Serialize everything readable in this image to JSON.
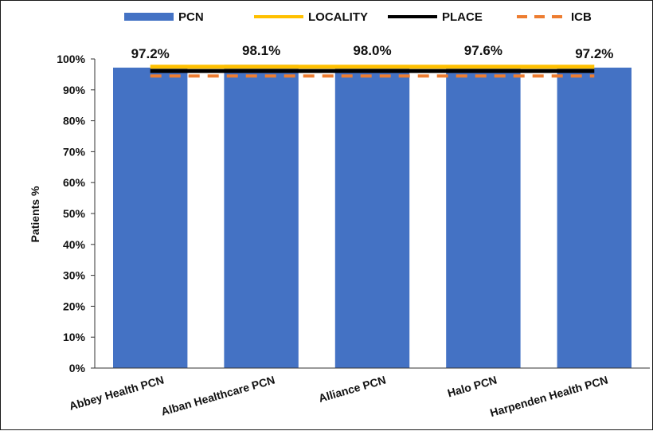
{
  "chart_data": {
    "type": "bar",
    "categories": [
      "Abbey Health PCN",
      "Alban Healthcare PCN",
      "Alliance PCN",
      "Halo PCN",
      "Harpenden Health PCN"
    ],
    "series": [
      {
        "name": "PCN",
        "values": [
          97.2,
          98.1,
          98.0,
          97.6,
          97.2
        ],
        "color": "#4472c4",
        "kind": "bar"
      }
    ],
    "reference_lines": [
      {
        "name": "LOCALITY",
        "value": 97.5,
        "color": "#ffc000",
        "style": "solid"
      },
      {
        "name": "PLACE",
        "value": 96.1,
        "color": "#000000",
        "style": "solid"
      },
      {
        "name": "ICB",
        "value": 94.5,
        "color": "#ed7d31",
        "style": "dashed"
      }
    ],
    "data_labels": [
      "97.2%",
      "98.1%",
      "98.0%",
      "97.6%",
      "97.2%"
    ],
    "ylabel": "Patients %",
    "xlabel": "",
    "ylim": [
      0,
      100
    ],
    "yticks": [
      0,
      10,
      20,
      30,
      40,
      50,
      60,
      70,
      80,
      90,
      100
    ],
    "ytick_labels": [
      "0%",
      "10%",
      "20%",
      "30%",
      "40%",
      "50%",
      "60%",
      "70%",
      "80%",
      "90%",
      "100%"
    ],
    "grid": false,
    "legend_position": "top"
  }
}
